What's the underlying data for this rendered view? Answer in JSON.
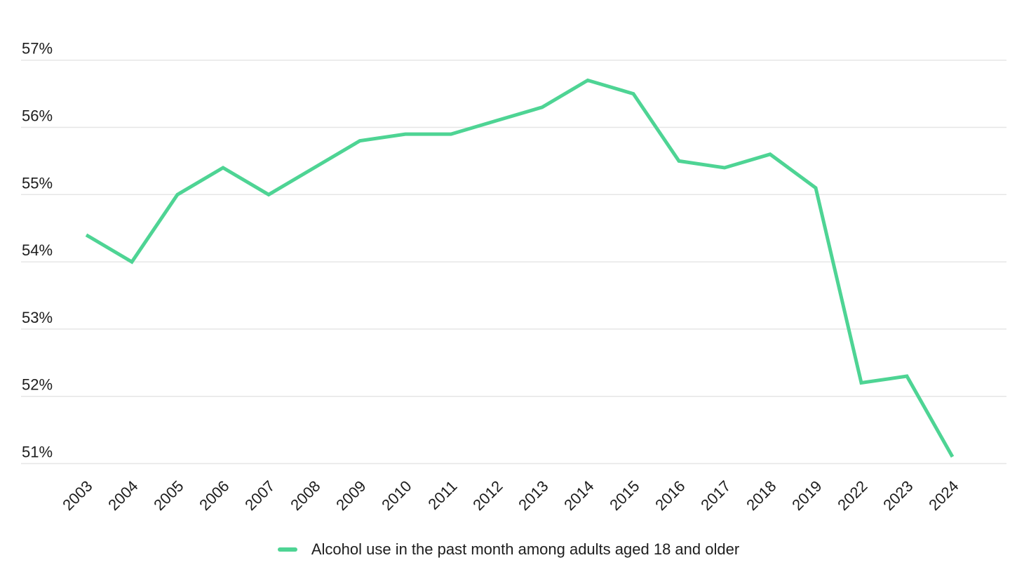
{
  "chart_data": {
    "type": "line",
    "categories": [
      "2003",
      "2004",
      "2005",
      "2006",
      "2007",
      "2008",
      "2009",
      "2010",
      "2011",
      "2012",
      "2013",
      "2014",
      "2015",
      "2016",
      "2017",
      "2018",
      "2019",
      "2022",
      "2023",
      "2024"
    ],
    "series": [
      {
        "name": "Alcohol use in the past month among adults aged 18 and older",
        "values": [
          54.4,
          54.0,
          55.0,
          55.4,
          55.0,
          55.4,
          55.8,
          55.9,
          55.9,
          56.1,
          56.3,
          56.7,
          56.5,
          55.5,
          55.4,
          55.6,
          55.1,
          52.2,
          52.3,
          51.1
        ]
      }
    ],
    "title": "",
    "xlabel": "",
    "ylabel": "",
    "ytick_labels": [
      "57%",
      "56%",
      "55%",
      "54%",
      "53%",
      "52%",
      "51%"
    ],
    "ytick_values": [
      57,
      56,
      55,
      54,
      53,
      52,
      51
    ],
    "ylim": [
      51,
      57
    ],
    "grid": "horizontal",
    "legend_position": "bottom-center"
  },
  "legend": {
    "label": "Alcohol use in the past month among adults aged 18 and older"
  },
  "colors": {
    "line": "#4ed494",
    "grid": "#e6e6e6",
    "text": "#1d1d1d"
  }
}
